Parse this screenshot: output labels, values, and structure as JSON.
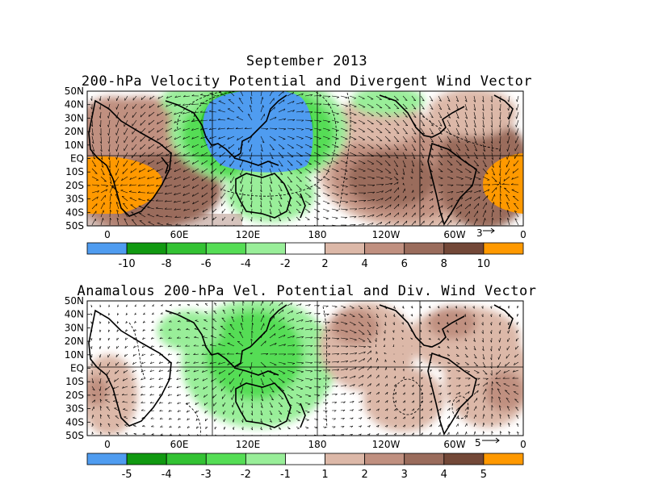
{
  "titles": {
    "month": "September 2013",
    "top": "200-hPa Velocity Potential and Divergent Wind Vector",
    "bottom": "Anamalous 200-hPa Vel. Potential and Div. Wind Vector"
  },
  "lat_labels": [
    "50N",
    "40N",
    "30N",
    "20N",
    "10N",
    "EQ",
    "10S",
    "20S",
    "30S",
    "40S",
    "50S"
  ],
  "lon_labels": [
    "0",
    "60E",
    "120E",
    "180",
    "120W",
    "60W",
    "0"
  ],
  "top_panel": {
    "vector_scale": "3",
    "colorbar_labels": [
      "-10",
      "-8",
      "-6",
      "-4",
      "-2",
      "2",
      "4",
      "6",
      "8",
      "10"
    ],
    "colors": [
      "#4f9cf0",
      "#119911",
      "#33c233",
      "#55dd55",
      "#99ee99",
      "#ffffff",
      "#dcb8a8",
      "#c09080",
      "#9a6c5c",
      "#734838",
      "#ff9900"
    ]
  },
  "bottom_panel": {
    "vector_scale": "5",
    "colorbar_labels": [
      "-5",
      "-4",
      "-3",
      "-2",
      "-1",
      "1",
      "2",
      "3",
      "4",
      "5"
    ],
    "colors": [
      "#4f9cf0",
      "#119911",
      "#33c233",
      "#55dd55",
      "#99ee99",
      "#ffffff",
      "#dcb8a8",
      "#c09080",
      "#9a6c5c",
      "#734838",
      "#ff9900"
    ]
  }
}
